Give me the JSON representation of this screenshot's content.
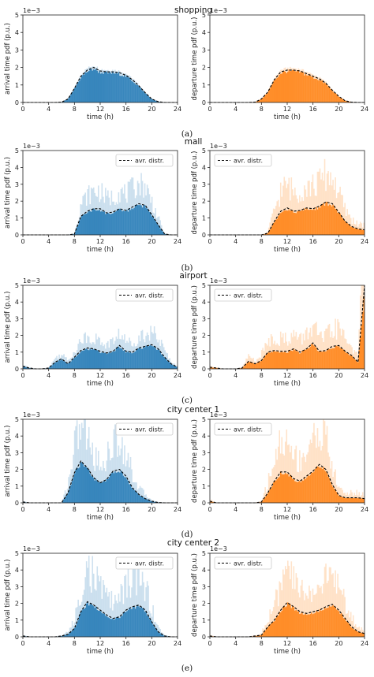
{
  "figure": {
    "axis_texts": {
      "x_label": "time (h)",
      "y_label_arrival": "arrival time pdf (p.u.)",
      "y_label_departure": "departure time pdf (p.u.)",
      "scale_note": "1e−3",
      "legend_label": "avr. distr."
    },
    "colors": {
      "arrival": "#1f77b4",
      "departure": "#ff7f0e",
      "avg_line": "#000000"
    }
  },
  "chart_data": [
    {
      "panel": "a",
      "title": "shopping",
      "caption": "(a)",
      "type": "bar",
      "x": [
        0,
        1,
        2,
        3,
        4,
        5,
        6,
        7,
        8,
        9,
        10,
        11,
        12,
        13,
        14,
        15,
        16,
        17,
        18,
        19,
        20,
        21,
        22,
        23,
        24
      ],
      "xlim": [
        0,
        24
      ],
      "ylim": [
        0,
        5
      ],
      "x_ticks": [
        0,
        4,
        8,
        12,
        16,
        20,
        24
      ],
      "y_ticks": [
        0,
        1,
        2,
        3,
        4,
        5
      ],
      "legend": false,
      "series": [
        {
          "side": "arrival",
          "peak_spread": 0.1,
          "values": [
            0,
            0,
            0,
            0,
            0,
            0,
            0.02,
            0.2,
            0.8,
            1.5,
            1.85,
            2.0,
            1.8,
            1.75,
            1.75,
            1.7,
            1.55,
            1.3,
            0.95,
            0.55,
            0.2,
            0.05,
            0,
            0,
            0
          ]
        },
        {
          "side": "departure",
          "peak_spread": 0.1,
          "values": [
            0,
            0,
            0,
            0,
            0,
            0,
            0,
            0.02,
            0.2,
            0.6,
            1.3,
            1.75,
            1.85,
            1.85,
            1.8,
            1.65,
            1.5,
            1.35,
            1.1,
            0.7,
            0.35,
            0.1,
            0.02,
            0,
            0
          ]
        }
      ]
    },
    {
      "panel": "b",
      "title": "mall",
      "caption": "(b)",
      "type": "bar",
      "x": [
        0,
        1,
        2,
        3,
        4,
        5,
        6,
        7,
        8,
        9,
        10,
        11,
        12,
        13,
        14,
        15,
        16,
        17,
        18,
        19,
        20,
        21,
        22,
        23,
        24
      ],
      "xlim": [
        0,
        24
      ],
      "ylim": [
        0,
        5
      ],
      "x_ticks": [
        0,
        4,
        8,
        12,
        16,
        20,
        24
      ],
      "y_ticks": [
        0,
        1,
        2,
        3,
        4,
        5
      ],
      "legend": true,
      "series": [
        {
          "side": "arrival",
          "peak_spread": 1.1,
          "values": [
            0,
            0,
            0,
            0,
            0,
            0,
            0,
            0,
            0.05,
            1.1,
            1.4,
            1.55,
            1.55,
            1.3,
            1.35,
            1.55,
            1.45,
            1.65,
            1.85,
            1.75,
            1.2,
            0.6,
            0.05,
            0,
            0
          ]
        },
        {
          "side": "departure",
          "peak_spread": 1.4,
          "values": [
            0,
            0,
            0,
            0,
            0,
            0,
            0,
            0,
            0,
            0.1,
            0.8,
            1.4,
            1.6,
            1.4,
            1.45,
            1.6,
            1.55,
            1.7,
            1.95,
            1.85,
            1.35,
            0.8,
            0.5,
            0.35,
            0.3
          ]
        }
      ]
    },
    {
      "panel": "c",
      "title": "airport",
      "caption": "(c)",
      "type": "bar",
      "x": [
        0,
        1,
        2,
        3,
        4,
        5,
        6,
        7,
        8,
        9,
        10,
        11,
        12,
        13,
        14,
        15,
        16,
        17,
        18,
        19,
        20,
        21,
        22,
        23,
        24
      ],
      "xlim": [
        0,
        24
      ],
      "ylim": [
        0,
        5
      ],
      "x_ticks": [
        0,
        4,
        8,
        12,
        16,
        20,
        24
      ],
      "y_ticks": [
        0,
        1,
        2,
        3,
        4,
        5
      ],
      "legend": true,
      "series": [
        {
          "side": "arrival",
          "peak_spread": 0.9,
          "values": [
            0.15,
            0.05,
            0,
            0,
            0.05,
            0.4,
            0.6,
            0.3,
            0.7,
            1.1,
            1.25,
            1.2,
            1.05,
            0.95,
            1.05,
            1.4,
            1.05,
            1.0,
            1.25,
            1.35,
            1.45,
            1.2,
            0.7,
            0.3,
            0.1
          ]
        },
        {
          "side": "departure",
          "peak_spread": 1.2,
          "values": [
            0.1,
            0.05,
            0,
            0,
            0,
            0.05,
            0.45,
            0.3,
            0.5,
            1.0,
            1.1,
            1.05,
            1.05,
            1.2,
            1.0,
            1.2,
            1.55,
            1.05,
            1.1,
            1.35,
            1.4,
            1.05,
            0.8,
            0.4,
            5.0
          ]
        }
      ]
    },
    {
      "panel": "d",
      "title": "city center 1",
      "caption": "(d)",
      "type": "bar",
      "x": [
        0,
        1,
        2,
        3,
        4,
        5,
        6,
        7,
        8,
        9,
        10,
        11,
        12,
        13,
        14,
        15,
        16,
        17,
        18,
        19,
        20,
        21,
        22,
        23,
        24
      ],
      "xlim": [
        0,
        24
      ],
      "ylim": [
        0,
        5
      ],
      "x_ticks": [
        0,
        4,
        8,
        12,
        16,
        20,
        24
      ],
      "y_ticks": [
        0,
        1,
        2,
        3,
        4,
        5
      ],
      "legend": true,
      "series": [
        {
          "side": "arrival",
          "peak_spread": 1.5,
          "values": [
            0.05,
            0,
            0,
            0,
            0,
            0,
            0,
            0.6,
            1.8,
            2.5,
            2.1,
            1.5,
            1.2,
            1.4,
            1.9,
            2.0,
            1.6,
            0.9,
            0.5,
            0.25,
            0.1,
            0.02,
            0,
            0,
            0
          ]
        },
        {
          "side": "departure",
          "peak_spread": 1.6,
          "values": [
            0.1,
            0,
            0,
            0,
            0,
            0,
            0,
            0,
            0.05,
            0.6,
            1.3,
            1.85,
            1.85,
            1.45,
            1.3,
            1.6,
            1.9,
            2.3,
            2.0,
            1.1,
            0.45,
            0.3,
            0.3,
            0.3,
            0.25
          ]
        }
      ]
    },
    {
      "panel": "e",
      "title": "city center 2",
      "caption": "(e)",
      "type": "bar",
      "x": [
        0,
        1,
        2,
        3,
        4,
        5,
        6,
        7,
        8,
        9,
        10,
        11,
        12,
        13,
        14,
        15,
        16,
        17,
        18,
        19,
        20,
        21,
        22,
        23,
        24
      ],
      "xlim": [
        0,
        24
      ],
      "ylim": [
        0,
        5
      ],
      "x_ticks": [
        0,
        4,
        8,
        12,
        16,
        20,
        24
      ],
      "y_ticks": [
        0,
        1,
        2,
        3,
        4,
        5
      ],
      "legend": true,
      "series": [
        {
          "side": "arrival",
          "peak_spread": 1.5,
          "values": [
            0.05,
            0,
            0,
            0,
            0,
            0,
            0.05,
            0.15,
            0.5,
            1.5,
            2.1,
            1.9,
            1.6,
            1.3,
            1.1,
            1.2,
            1.6,
            1.8,
            1.9,
            1.6,
            0.9,
            0.3,
            0.05,
            0,
            0
          ]
        },
        {
          "side": "departure",
          "peak_spread": 1.5,
          "values": [
            0.05,
            0,
            0,
            0,
            0,
            0,
            0,
            0.05,
            0.1,
            0.6,
            1.0,
            1.6,
            2.05,
            1.8,
            1.5,
            1.4,
            1.5,
            1.6,
            1.8,
            1.95,
            1.6,
            1.1,
            0.6,
            0.3,
            0.2
          ]
        }
      ]
    }
  ]
}
